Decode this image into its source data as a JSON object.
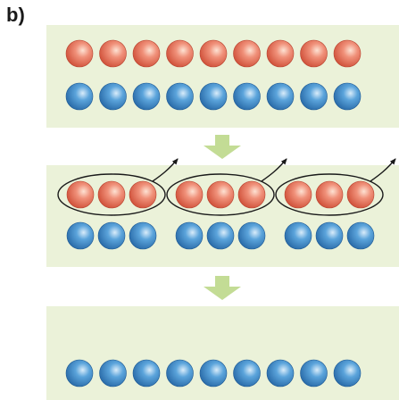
{
  "panel_label": "b)",
  "colors": {
    "panel_bg": "#ebf2d9",
    "red_ball": "#e0624a",
    "blue_ball": "#2f7fc4",
    "arrow": "#c3dc95",
    "outline": "#1a1a1a"
  },
  "stages": [
    {
      "name": "initial",
      "red_count": 9,
      "blue_count": 9,
      "grouping": "continuous"
    },
    {
      "name": "grouped",
      "red_count": 9,
      "blue_count": 9,
      "grouping": "3 groups of 3",
      "circled_groups": 3
    },
    {
      "name": "final",
      "red_count": 0,
      "blue_count": 9,
      "grouping": "continuous"
    }
  ]
}
